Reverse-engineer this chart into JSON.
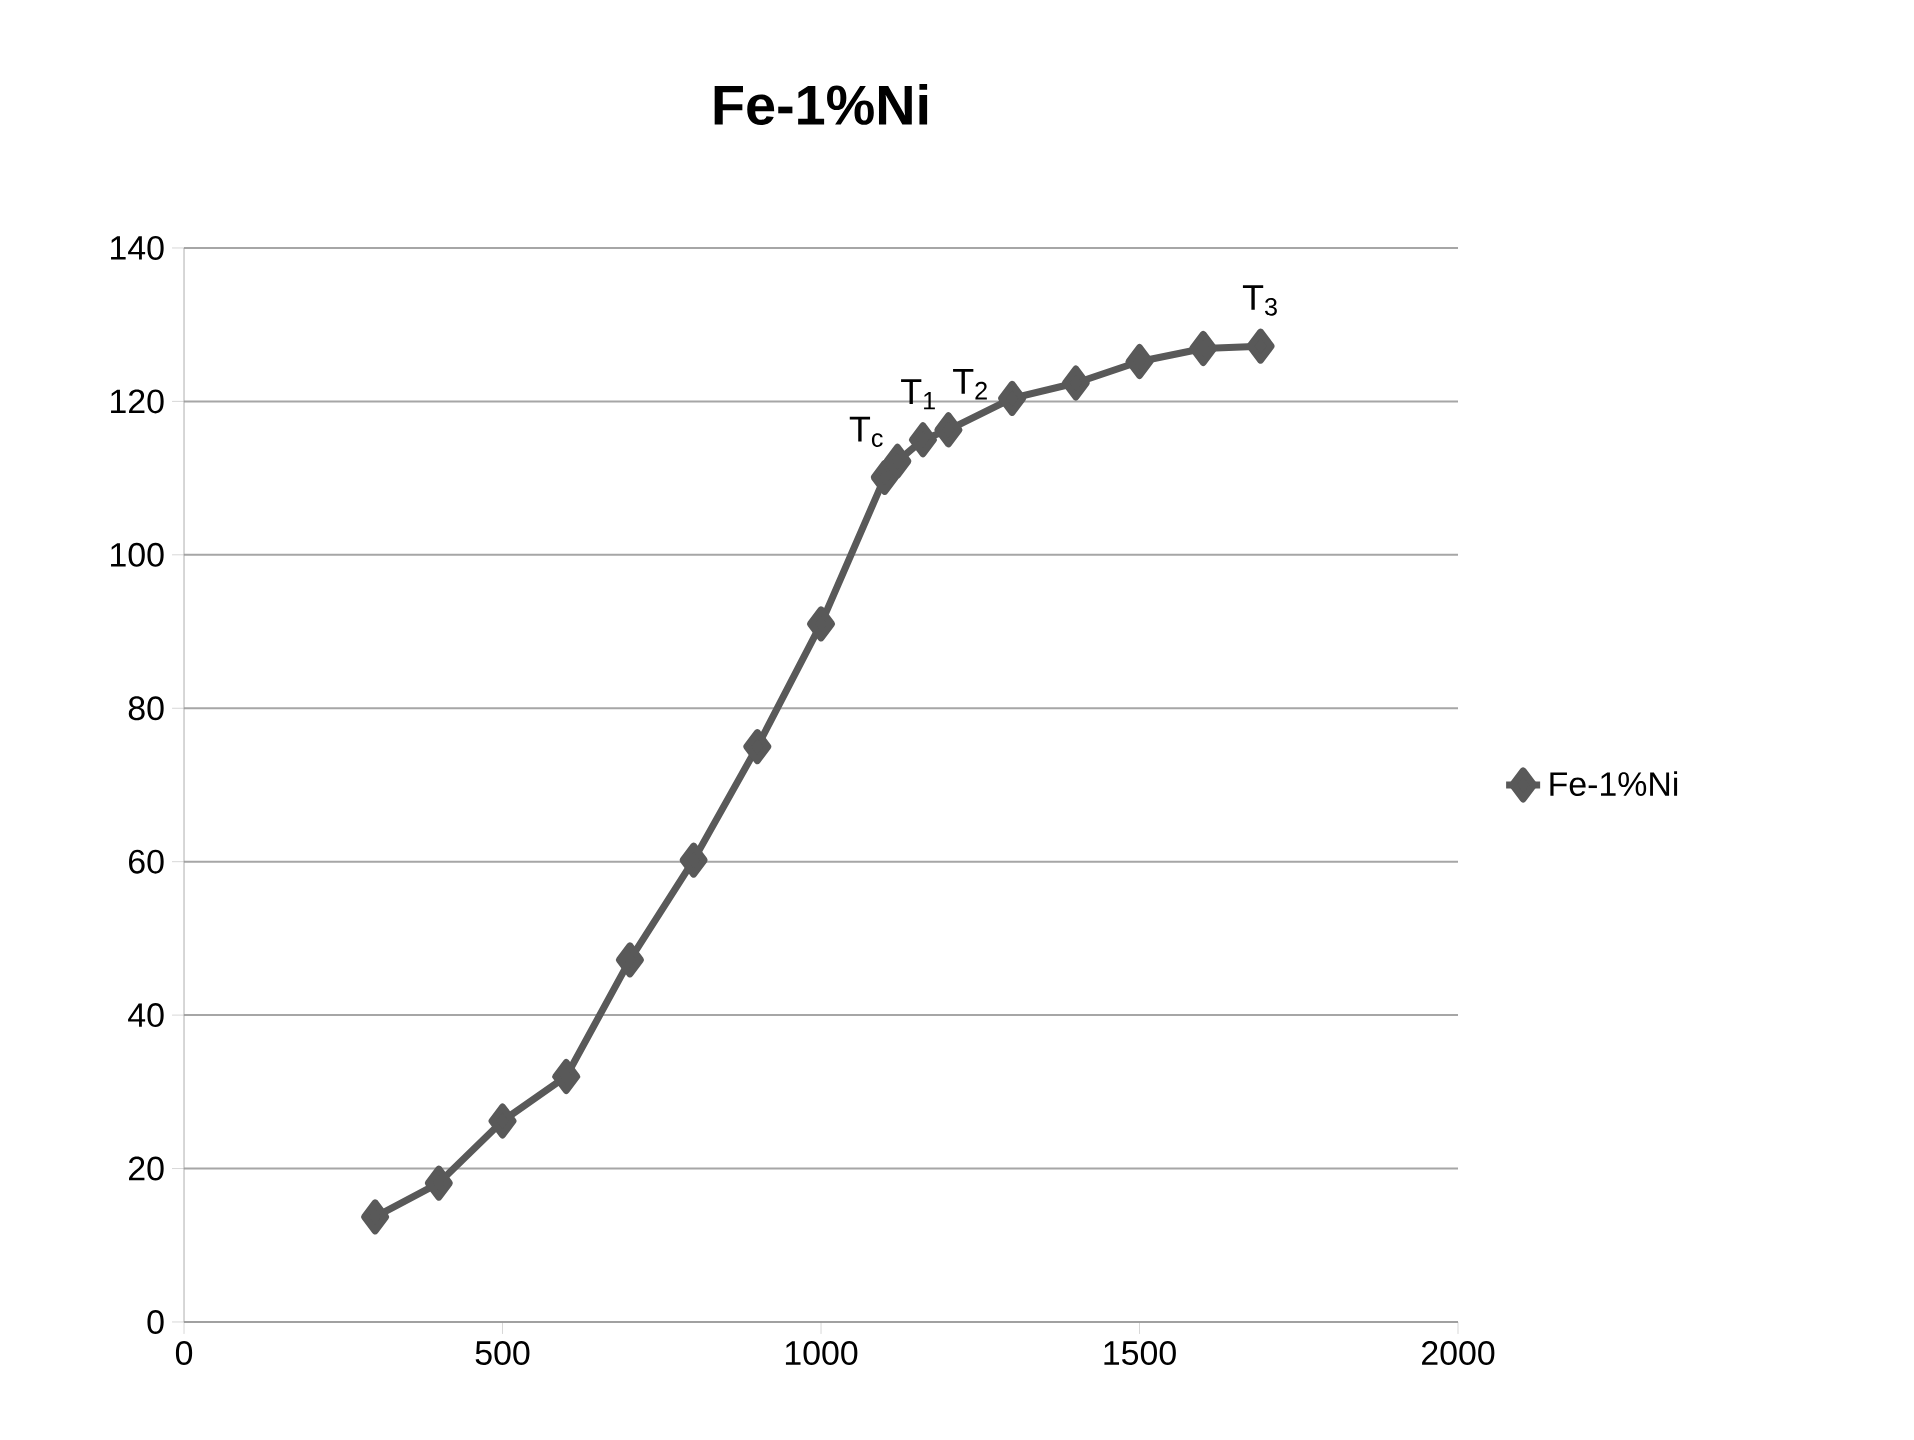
{
  "chart_data": {
    "type": "line",
    "title": "Fe-1%Ni",
    "x": [
      300,
      400,
      500,
      600,
      700,
      800,
      900,
      1000,
      1100,
      1120,
      1160,
      1200,
      1300,
      1400,
      1500,
      1600,
      1690
    ],
    "series": [
      {
        "name": "Fe-1%Ni",
        "color": "#595959",
        "values": [
          13.7,
          18.1,
          26.2,
          32,
          47.2,
          60.2,
          75,
          91,
          110.1,
          112.2,
          115,
          116.3,
          120.4,
          122.4,
          125.2,
          126.9,
          127.2
        ]
      }
    ],
    "xlim": [
      0,
      2000
    ],
    "xticks": [
      0,
      500,
      1000,
      1500,
      2000
    ],
    "ylim": [
      0,
      140
    ],
    "yticks": [
      0,
      20,
      40,
      60,
      80,
      100,
      120,
      140
    ],
    "grid": "y",
    "legend": "right",
    "marker": "diamond",
    "line_style": "solid",
    "annotations": [
      {
        "text": "T$_{c}$",
        "x": 1100,
        "y": 110.1
      },
      {
        "text": "T$_{1}$",
        "x": 1160,
        "y": 115
      },
      {
        "text": "T$_{2}$",
        "x": 1200,
        "y": 116.3
      },
      {
        "text": "T$_{3}$",
        "x": 1690,
        "y": 127.2
      }
    ]
  }
}
